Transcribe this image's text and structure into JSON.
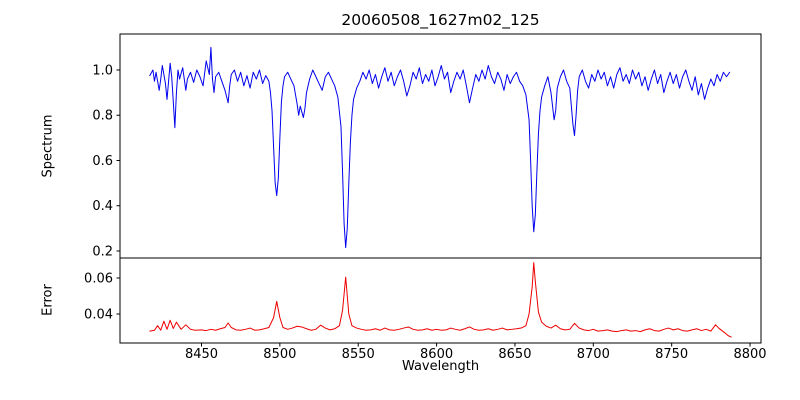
{
  "title": "20060508_1627m02_125",
  "xlabel": "Wavelength",
  "chart_data": [
    {
      "type": "line",
      "name": "spectrum",
      "ylabel": "Spectrum",
      "color": "#0000ee",
      "line_width": 1,
      "xlim": [
        8398,
        8807
      ],
      "ylim": [
        0.169,
        1.159
      ],
      "grid": false,
      "yticks": [
        {
          "value": 1.0,
          "label": "1.0"
        },
        {
          "value": 0.8,
          "label": "0.8"
        },
        {
          "value": 0.6,
          "label": "0.6"
        },
        {
          "value": 0.4,
          "label": "0.4"
        },
        {
          "value": 0.2,
          "label": "0.2"
        }
      ],
      "points": [
        [
          8417,
          0.975
        ],
        [
          8419,
          1.0
        ],
        [
          8420,
          0.95
        ],
        [
          8421,
          0.99
        ],
        [
          8423,
          0.91
        ],
        [
          8424,
          0.96
        ],
        [
          8425,
          1.02
        ],
        [
          8427,
          0.94
        ],
        [
          8428,
          0.87
        ],
        [
          8429,
          0.95
        ],
        [
          8430,
          1.03
        ],
        [
          8431,
          0.97
        ],
        [
          8432,
          0.86
        ],
        [
          8433,
          0.745
        ],
        [
          8434,
          0.9
        ],
        [
          8435,
          1.0
        ],
        [
          8436,
          0.96
        ],
        [
          8438,
          1.01
        ],
        [
          8440,
          0.91
        ],
        [
          8441,
          0.96
        ],
        [
          8443,
          0.99
        ],
        [
          8445,
          0.945
        ],
        [
          8447,
          1.0
        ],
        [
          8449,
          0.97
        ],
        [
          8451,
          0.93
        ],
        [
          8453,
          1.04
        ],
        [
          8455,
          0.98
        ],
        [
          8456,
          1.1
        ],
        [
          8457,
          0.96
        ],
        [
          8458,
          0.9
        ],
        [
          8459,
          0.97
        ],
        [
          8461,
          0.99
        ],
        [
          8463,
          0.95
        ],
        [
          8465,
          0.91
        ],
        [
          8467,
          0.855
        ],
        [
          8468,
          0.93
        ],
        [
          8469,
          0.98
        ],
        [
          8471,
          1.0
        ],
        [
          8473,
          0.95
        ],
        [
          8475,
          0.99
        ],
        [
          8477,
          0.93
        ],
        [
          8479,
          0.975
        ],
        [
          8481,
          0.92
        ],
        [
          8483,
          0.99
        ],
        [
          8485,
          0.96
        ],
        [
          8487,
          1.0
        ],
        [
          8489,
          0.94
        ],
        [
          8491,
          0.975
        ],
        [
          8493,
          0.95
        ],
        [
          8494,
          0.9
        ],
        [
          8495,
          0.82
        ],
        [
          8496,
          0.66
        ],
        [
          8497,
          0.5
        ],
        [
          8498,
          0.445
        ],
        [
          8499,
          0.52
        ],
        [
          8500,
          0.7
        ],
        [
          8501,
          0.86
        ],
        [
          8502,
          0.93
        ],
        [
          8503,
          0.97
        ],
        [
          8505,
          0.99
        ],
        [
          8507,
          0.96
        ],
        [
          8509,
          0.93
        ],
        [
          8511,
          0.85
        ],
        [
          8512,
          0.8
        ],
        [
          8513,
          0.84
        ],
        [
          8515,
          0.79
        ],
        [
          8516,
          0.83
        ],
        [
          8517,
          0.9
        ],
        [
          8519,
          0.96
        ],
        [
          8521,
          1.0
        ],
        [
          8523,
          0.97
        ],
        [
          8525,
          0.94
        ],
        [
          8527,
          0.91
        ],
        [
          8529,
          0.97
        ],
        [
          8531,
          0.99
        ],
        [
          8533,
          0.96
        ],
        [
          8535,
          0.93
        ],
        [
          8537,
          0.88
        ],
        [
          8539,
          0.75
        ],
        [
          8540,
          0.55
        ],
        [
          8541,
          0.32
        ],
        [
          8542,
          0.215
        ],
        [
          8543,
          0.3
        ],
        [
          8544,
          0.5
        ],
        [
          8545,
          0.68
        ],
        [
          8546,
          0.8
        ],
        [
          8547,
          0.87
        ],
        [
          8549,
          0.92
        ],
        [
          8551,
          0.95
        ],
        [
          8553,
          0.99
        ],
        [
          8555,
          0.96
        ],
        [
          8557,
          1.0
        ],
        [
          8559,
          0.94
        ],
        [
          8561,
          0.98
        ],
        [
          8563,
          0.92
        ],
        [
          8565,
          0.97
        ],
        [
          8567,
          1.01
        ],
        [
          8569,
          0.95
        ],
        [
          8571,
          0.99
        ],
        [
          8573,
          0.93
        ],
        [
          8575,
          0.97
        ],
        [
          8577,
          1.0
        ],
        [
          8579,
          0.95
        ],
        [
          8581,
          0.885
        ],
        [
          8583,
          0.93
        ],
        [
          8585,
          0.99
        ],
        [
          8587,
          0.96
        ],
        [
          8589,
          1.01
        ],
        [
          8591,
          0.94
        ],
        [
          8593,
          0.98
        ],
        [
          8595,
          0.95
        ],
        [
          8597,
          1.0
        ],
        [
          8599,
          0.93
        ],
        [
          8601,
          0.97
        ],
        [
          8603,
          1.02
        ],
        [
          8605,
          0.96
        ],
        [
          8607,
          0.99
        ],
        [
          8609,
          0.9
        ],
        [
          8611,
          0.95
        ],
        [
          8613,
          0.99
        ],
        [
          8615,
          0.96
        ],
        [
          8617,
          1.0
        ],
        [
          8619,
          0.93
        ],
        [
          8621,
          0.855
        ],
        [
          8623,
          0.92
        ],
        [
          8625,
          0.98
        ],
        [
          8627,
          0.95
        ],
        [
          8629,
          1.0
        ],
        [
          8631,
          0.96
        ],
        [
          8633,
          1.02
        ],
        [
          8635,
          0.97
        ],
        [
          8637,
          0.94
        ],
        [
          8639,
          0.99
        ],
        [
          8641,
          0.96
        ],
        [
          8643,
          0.91
        ],
        [
          8645,
          0.98
        ],
        [
          8647,
          0.94
        ],
        [
          8649,
          0.97
        ],
        [
          8651,
          0.99
        ],
        [
          8653,
          0.95
        ],
        [
          8655,
          0.93
        ],
        [
          8657,
          0.89
        ],
        [
          8659,
          0.78
        ],
        [
          8660,
          0.6
        ],
        [
          8661,
          0.4
        ],
        [
          8662,
          0.285
        ],
        [
          8663,
          0.36
        ],
        [
          8664,
          0.55
        ],
        [
          8665,
          0.72
        ],
        [
          8666,
          0.82
        ],
        [
          8667,
          0.88
        ],
        [
          8669,
          0.93
        ],
        [
          8671,
          0.97
        ],
        [
          8673,
          0.9
        ],
        [
          8675,
          0.78
        ],
        [
          8676,
          0.82
        ],
        [
          8677,
          0.92
        ],
        [
          8679,
          0.97
        ],
        [
          8681,
          1.0
        ],
        [
          8683,
          0.95
        ],
        [
          8685,
          0.92
        ],
        [
          8687,
          0.76
        ],
        [
          8688,
          0.71
        ],
        [
          8689,
          0.8
        ],
        [
          8690,
          0.91
        ],
        [
          8691,
          0.97
        ],
        [
          8693,
          1.0
        ],
        [
          8695,
          0.95
        ],
        [
          8697,
          0.92
        ],
        [
          8699,
          0.98
        ],
        [
          8701,
          0.95
        ],
        [
          8703,
          1.0
        ],
        [
          8705,
          0.96
        ],
        [
          8707,
          0.99
        ],
        [
          8709,
          0.93
        ],
        [
          8711,
          0.97
        ],
        [
          8713,
          0.92
        ],
        [
          8715,
          0.98
        ],
        [
          8717,
          1.01
        ],
        [
          8719,
          0.95
        ],
        [
          8721,
          0.98
        ],
        [
          8723,
          0.94
        ],
        [
          8725,
          1.0
        ],
        [
          8727,
          0.96
        ],
        [
          8729,
          0.99
        ],
        [
          8731,
          0.93
        ],
        [
          8733,
          0.97
        ],
        [
          8735,
          0.91
        ],
        [
          8737,
          0.96
        ],
        [
          8739,
          1.0
        ],
        [
          8741,
          0.94
        ],
        [
          8743,
          0.98
        ],
        [
          8745,
          0.9
        ],
        [
          8747,
          0.95
        ],
        [
          8749,
          0.99
        ],
        [
          8751,
          0.94
        ],
        [
          8753,
          0.98
        ],
        [
          8755,
          0.92
        ],
        [
          8757,
          0.97
        ],
        [
          8759,
          1.0
        ],
        [
          8761,
          0.95
        ],
        [
          8763,
          0.91
        ],
        [
          8765,
          0.97
        ],
        [
          8767,
          0.89
        ],
        [
          8769,
          0.94
        ],
        [
          8771,
          0.87
        ],
        [
          8773,
          0.92
        ],
        [
          8775,
          0.96
        ],
        [
          8777,
          0.93
        ],
        [
          8779,
          0.98
        ],
        [
          8781,
          0.95
        ],
        [
          8783,
          0.99
        ],
        [
          8785,
          0.97
        ],
        [
          8787,
          0.99
        ]
      ]
    },
    {
      "type": "line",
      "name": "error",
      "ylabel": "Error",
      "color": "#ee0000",
      "line_width": 1,
      "xlim": [
        8398,
        8807
      ],
      "ylim": [
        0.0239,
        0.0711
      ],
      "grid": false,
      "yticks": [
        {
          "value": 0.06,
          "label": "0.06"
        },
        {
          "value": 0.04,
          "label": "0.04"
        }
      ],
      "points": [
        [
          8417,
          0.0305
        ],
        [
          8420,
          0.031
        ],
        [
          8422,
          0.0335
        ],
        [
          8424,
          0.031
        ],
        [
          8426,
          0.036
        ],
        [
          8428,
          0.0315
        ],
        [
          8430,
          0.0365
        ],
        [
          8432,
          0.032
        ],
        [
          8434,
          0.0355
        ],
        [
          8437,
          0.0315
        ],
        [
          8440,
          0.034
        ],
        [
          8443,
          0.0315
        ],
        [
          8446,
          0.031
        ],
        [
          8450,
          0.0312
        ],
        [
          8453,
          0.0308
        ],
        [
          8456,
          0.0315
        ],
        [
          8459,
          0.031
        ],
        [
          8462,
          0.0318
        ],
        [
          8465,
          0.0325
        ],
        [
          8467,
          0.035
        ],
        [
          8469,
          0.0325
        ],
        [
          8472,
          0.0312
        ],
        [
          8475,
          0.031
        ],
        [
          8478,
          0.0315
        ],
        [
          8481,
          0.0322
        ],
        [
          8484,
          0.031
        ],
        [
          8487,
          0.0312
        ],
        [
          8490,
          0.0318
        ],
        [
          8493,
          0.0325
        ],
        [
          8496,
          0.038
        ],
        [
          8498,
          0.047
        ],
        [
          8500,
          0.038
        ],
        [
          8502,
          0.0325
        ],
        [
          8505,
          0.0315
        ],
        [
          8508,
          0.0322
        ],
        [
          8511,
          0.0332
        ],
        [
          8514,
          0.0328
        ],
        [
          8517,
          0.0318
        ],
        [
          8520,
          0.031
        ],
        [
          8523,
          0.0315
        ],
        [
          8526,
          0.0338
        ],
        [
          8529,
          0.0322
        ],
        [
          8532,
          0.0312
        ],
        [
          8535,
          0.0318
        ],
        [
          8538,
          0.0335
        ],
        [
          8540,
          0.042
        ],
        [
          8542,
          0.0605
        ],
        [
          8544,
          0.04
        ],
        [
          8546,
          0.0335
        ],
        [
          8549,
          0.0322
        ],
        [
          8552,
          0.0315
        ],
        [
          8555,
          0.031
        ],
        [
          8558,
          0.0312
        ],
        [
          8561,
          0.0318
        ],
        [
          8564,
          0.031
        ],
        [
          8567,
          0.0322
        ],
        [
          8570,
          0.0312
        ],
        [
          8573,
          0.031
        ],
        [
          8576,
          0.0315
        ],
        [
          8579,
          0.0322
        ],
        [
          8582,
          0.0328
        ],
        [
          8585,
          0.0315
        ],
        [
          8588,
          0.031
        ],
        [
          8591,
          0.0312
        ],
        [
          8594,
          0.0318
        ],
        [
          8597,
          0.031
        ],
        [
          8600,
          0.0315
        ],
        [
          8603,
          0.031
        ],
        [
          8606,
          0.0312
        ],
        [
          8609,
          0.0322
        ],
        [
          8612,
          0.0315
        ],
        [
          8615,
          0.031
        ],
        [
          8618,
          0.0318
        ],
        [
          8621,
          0.0328
        ],
        [
          8624,
          0.0315
        ],
        [
          8627,
          0.031
        ],
        [
          8630,
          0.0312
        ],
        [
          8633,
          0.0318
        ],
        [
          8636,
          0.031
        ],
        [
          8639,
          0.0315
        ],
        [
          8642,
          0.0322
        ],
        [
          8645,
          0.0312
        ],
        [
          8648,
          0.0315
        ],
        [
          8651,
          0.0318
        ],
        [
          8654,
          0.0322
        ],
        [
          8657,
          0.0335
        ],
        [
          8659,
          0.04
        ],
        [
          8661,
          0.055
        ],
        [
          8662,
          0.0685
        ],
        [
          8663,
          0.058
        ],
        [
          8665,
          0.041
        ],
        [
          8667,
          0.0355
        ],
        [
          8670,
          0.0332
        ],
        [
          8673,
          0.0322
        ],
        [
          8676,
          0.0338
        ],
        [
          8679,
          0.0318
        ],
        [
          8682,
          0.0312
        ],
        [
          8685,
          0.0315
        ],
        [
          8688,
          0.0348
        ],
        [
          8691,
          0.0322
        ],
        [
          8694,
          0.0312
        ],
        [
          8697,
          0.0308
        ],
        [
          8700,
          0.0315
        ],
        [
          8703,
          0.0305
        ],
        [
          8706,
          0.0308
        ],
        [
          8709,
          0.0312
        ],
        [
          8712,
          0.0305
        ],
        [
          8715,
          0.0302
        ],
        [
          8718,
          0.0308
        ],
        [
          8721,
          0.0312
        ],
        [
          8724,
          0.0305
        ],
        [
          8727,
          0.0308
        ],
        [
          8730,
          0.0302
        ],
        [
          8733,
          0.0312
        ],
        [
          8736,
          0.0318
        ],
        [
          8739,
          0.0308
        ],
        [
          8742,
          0.0305
        ],
        [
          8745,
          0.0315
        ],
        [
          8748,
          0.0322
        ],
        [
          8751,
          0.0312
        ],
        [
          8754,
          0.0318
        ],
        [
          8757,
          0.0308
        ],
        [
          8760,
          0.0305
        ],
        [
          8763,
          0.0312
        ],
        [
          8766,
          0.0318
        ],
        [
          8769,
          0.0308
        ],
        [
          8772,
          0.0315
        ],
        [
          8775,
          0.0305
        ],
        [
          8778,
          0.034
        ],
        [
          8780,
          0.0322
        ],
        [
          8782,
          0.0308
        ],
        [
          8784,
          0.0295
        ],
        [
          8786,
          0.028
        ],
        [
          8788,
          0.0272
        ]
      ]
    }
  ],
  "xticks": [
    {
      "value": 8450,
      "label": "8450"
    },
    {
      "value": 8500,
      "label": "8500"
    },
    {
      "value": 8550,
      "label": "8550"
    },
    {
      "value": 8600,
      "label": "8600"
    },
    {
      "value": 8650,
      "label": "8650"
    },
    {
      "value": 8700,
      "label": "8700"
    },
    {
      "value": 8750,
      "label": "8750"
    },
    {
      "value": 8800,
      "label": "8800"
    }
  ]
}
